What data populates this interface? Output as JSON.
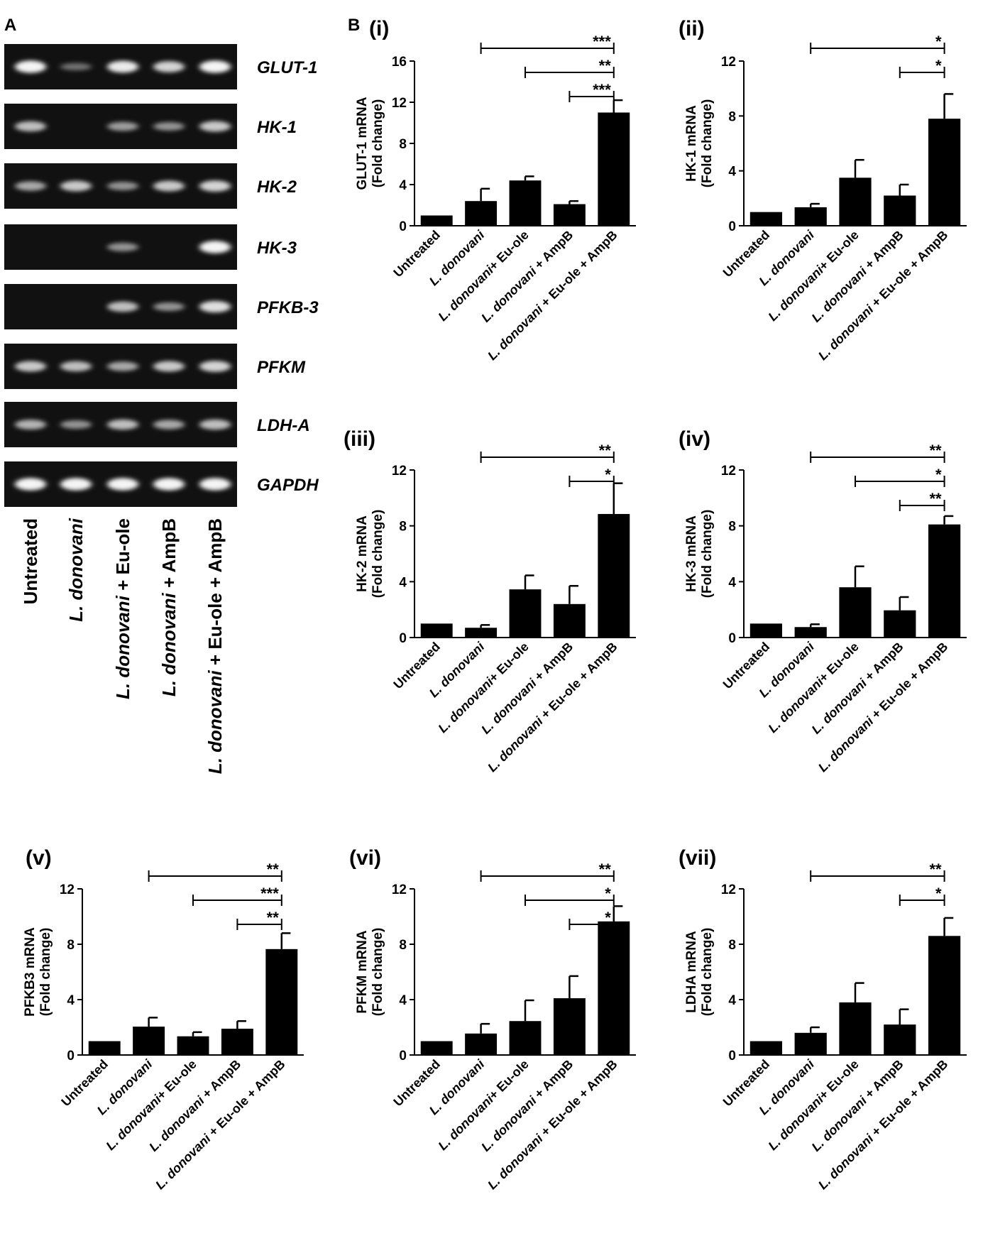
{
  "panel_a": {
    "letter": "A",
    "genes": [
      "GLUT-1",
      "HK-1",
      "HK-2",
      "HK-3",
      "PFKB-3",
      "PFKM",
      "LDH-A",
      "GAPDH"
    ],
    "lanes": [
      {
        "pre": "",
        "ital": "",
        "plain": "Untreated"
      },
      {
        "pre": "",
        "ital": "L. donovani",
        "plain": ""
      },
      {
        "pre": "",
        "ital": "L. donovani",
        "plain": " + Eu-ole"
      },
      {
        "pre": "",
        "ital": "L. donovani",
        "plain": " + AmpB"
      },
      {
        "pre": "",
        "ital": "L. donovani",
        "plain": " + Eu-ole + AmpB"
      }
    ],
    "band_intensity": [
      [
        0.95,
        0.35,
        0.9,
        0.8,
        0.95
      ],
      [
        0.7,
        0.0,
        0.55,
        0.5,
        0.75
      ],
      [
        0.6,
        0.75,
        0.5,
        0.75,
        0.8
      ],
      [
        0.0,
        0.0,
        0.5,
        0.0,
        0.95
      ],
      [
        0.0,
        0.0,
        0.7,
        0.5,
        0.85
      ],
      [
        0.75,
        0.7,
        0.6,
        0.75,
        0.8
      ],
      [
        0.65,
        0.5,
        0.7,
        0.6,
        0.7
      ],
      [
        0.95,
        0.95,
        0.95,
        0.95,
        0.95
      ]
    ]
  },
  "panel_b_letter": "B",
  "categories": [
    {
      "ital": "",
      "plain": "Untreated"
    },
    {
      "ital": "L. donovani",
      "plain": ""
    },
    {
      "ital": "L. donovani",
      "plain": "+ Eu-ole"
    },
    {
      "ital": "L. donovani",
      "plain": " + AmpB"
    },
    {
      "ital": "L. donovani",
      "plain": " + Eu-ole + AmpB"
    }
  ],
  "chart_data": [
    {
      "type": "bar",
      "panel": "(i)",
      "ylabel": [
        "GLUT-1 mRNA",
        "(Fold change)"
      ],
      "ylim": [
        0,
        16
      ],
      "yticks": [
        0,
        4,
        8,
        12,
        16
      ],
      "values": [
        1.0,
        2.4,
        4.4,
        2.1,
        11.0
      ],
      "errors": [
        0,
        1.2,
        0.4,
        0.3,
        1.2
      ],
      "significance": [
        {
          "from": 1,
          "to": 4,
          "label": "***"
        },
        {
          "from": 2,
          "to": 4,
          "label": "**"
        },
        {
          "from": 3,
          "to": 4,
          "label": "***"
        }
      ]
    },
    {
      "type": "bar",
      "panel": "(ii)",
      "ylabel": [
        "HK-1 mRNA",
        "(Fold change)"
      ],
      "ylim": [
        0,
        12
      ],
      "yticks": [
        0,
        4,
        8,
        12
      ],
      "values": [
        1.0,
        1.35,
        3.5,
        2.2,
        7.8
      ],
      "errors": [
        0,
        0.25,
        1.3,
        0.8,
        1.8
      ],
      "significance": [
        {
          "from": 1,
          "to": 4,
          "label": "*"
        },
        {
          "from": 3,
          "to": 4,
          "label": "*"
        }
      ]
    },
    {
      "type": "bar",
      "panel": "(iii)",
      "ylabel": [
        "HK-2 mRNA",
        "(Fold change)"
      ],
      "ylim": [
        0,
        12
      ],
      "yticks": [
        0,
        4,
        8,
        12
      ],
      "values": [
        1.0,
        0.7,
        3.45,
        2.4,
        8.85
      ],
      "errors": [
        0,
        0.2,
        1.0,
        1.3,
        2.2
      ],
      "significance": [
        {
          "from": 1,
          "to": 4,
          "label": "**"
        },
        {
          "from": 3,
          "to": 4,
          "label": "*"
        }
      ]
    },
    {
      "type": "bar",
      "panel": "(iv)",
      "ylabel": [
        "HK-3 mRNA",
        "(Fold change)"
      ],
      "ylim": [
        0,
        12
      ],
      "yticks": [
        0,
        4,
        8,
        12
      ],
      "values": [
        1.0,
        0.75,
        3.6,
        1.95,
        8.1
      ],
      "errors": [
        0,
        0.2,
        1.5,
        0.95,
        0.6
      ],
      "significance": [
        {
          "from": 1,
          "to": 4,
          "label": "**"
        },
        {
          "from": 2,
          "to": 4,
          "label": "*"
        },
        {
          "from": 3,
          "to": 4,
          "label": "**"
        }
      ]
    },
    {
      "type": "bar",
      "panel": "(v)",
      "ylabel": [
        "PFKB3 mRNA",
        "(Fold change)"
      ],
      "ylim": [
        0,
        12
      ],
      "yticks": [
        0,
        4,
        8,
        12
      ],
      "values": [
        1.0,
        2.05,
        1.35,
        1.9,
        7.65
      ],
      "errors": [
        0,
        0.65,
        0.3,
        0.55,
        1.15
      ],
      "significance": [
        {
          "from": 1,
          "to": 4,
          "label": "**"
        },
        {
          "from": 2,
          "to": 4,
          "label": "***"
        },
        {
          "from": 3,
          "to": 4,
          "label": "**"
        }
      ]
    },
    {
      "type": "bar",
      "panel": "(vi)",
      "ylabel": [
        "PFKM mRNA",
        "(Fold change)"
      ],
      "ylim": [
        0,
        12
      ],
      "yticks": [
        0,
        4,
        8,
        12
      ],
      "values": [
        1.0,
        1.55,
        2.45,
        4.1,
        9.65
      ],
      "errors": [
        0,
        0.7,
        1.5,
        1.6,
        1.1
      ],
      "significance": [
        {
          "from": 1,
          "to": 4,
          "label": "**"
        },
        {
          "from": 2,
          "to": 4,
          "label": "*"
        },
        {
          "from": 3,
          "to": 4,
          "label": "*"
        }
      ]
    },
    {
      "type": "bar",
      "panel": "(vii)",
      "ylabel": [
        "LDHA mRNA",
        "(Fold change)"
      ],
      "ylim": [
        0,
        12
      ],
      "yticks": [
        0,
        4,
        8,
        12
      ],
      "values": [
        1.0,
        1.6,
        3.8,
        2.2,
        8.6
      ],
      "errors": [
        0,
        0.4,
        1.4,
        1.1,
        1.3
      ],
      "significance": [
        {
          "from": 1,
          "to": 4,
          "label": "**"
        },
        {
          "from": 3,
          "to": 4,
          "label": "*"
        }
      ]
    }
  ]
}
